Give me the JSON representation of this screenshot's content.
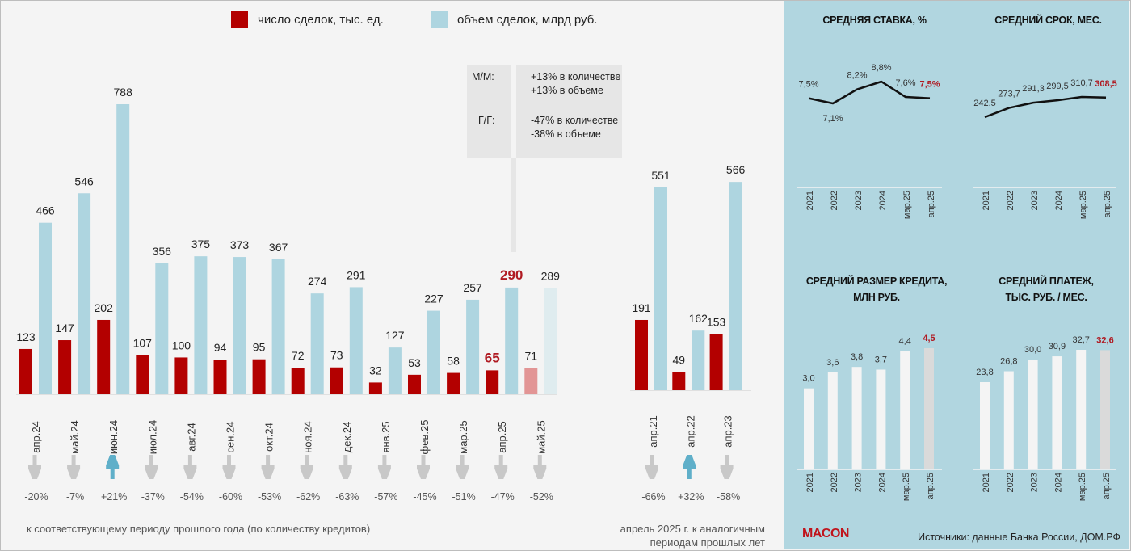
{
  "legend": {
    "count_label": "число сделок, тыс. ед.",
    "count_color": "#b30000",
    "volume_label": "объем сделок, млрд руб.",
    "volume_color": "#aed5e0"
  },
  "callout": {
    "mm_key": "М/М:",
    "mm_lines": [
      "+13% в количестве",
      "+13% в объеме"
    ],
    "yy_key": "Г/Г:",
    "yy_lines": [
      "-47% в количестве",
      "-38% в объеме"
    ]
  },
  "footnotes": {
    "left": "к соответствующему периоду прошлого года (по количеству кредитов)",
    "right_line1": "апрель 2025 г. к аналогичным",
    "right_line2": "периодам прошлых лет"
  },
  "brand": "MACON",
  "sources": "Источники: данные Банка России, ДОМ.РФ",
  "colors": {
    "count": "#b30000",
    "count_forecast": "#e29595",
    "volume": "#aed5e0",
    "volume_forecast": "#dfecef",
    "highlight_text": "#b01a22",
    "arrow_down": "#c8c8c8",
    "arrow_up": "#5fafc9",
    "panel_bar": "#f4f4f4",
    "panel_bar_current": "#dadada"
  },
  "chart_data": [
    {
      "type": "bar",
      "title": "Monthly mortgage deals",
      "categories": [
        "апр.24",
        "май.24",
        "июн.24",
        "июл.24",
        "авг.24",
        "сен.24",
        "окт.24",
        "ноя.24",
        "дек.24",
        "янв.25",
        "фев.25",
        "мар.25",
        "апр.25",
        "май.25"
      ],
      "series": [
        {
          "name": "число сделок, тыс. ед.",
          "values": [
            123,
            147,
            202,
            107,
            100,
            94,
            95,
            72,
            73,
            32,
            53,
            58,
            65,
            71
          ]
        },
        {
          "name": "объем сделок, млрд руб.",
          "values": [
            466,
            546,
            788,
            356,
            375,
            373,
            367,
            274,
            291,
            127,
            227,
            257,
            290,
            289
          ]
        }
      ],
      "highlight_index": 12,
      "forecast_index": 13,
      "yoy_change": [
        "-20%",
        "-7%",
        "+21%",
        "-37%",
        "-54%",
        "-60%",
        "-53%",
        "-62%",
        "-63%",
        "-57%",
        "-45%",
        "-51%",
        "-47%",
        "-52%"
      ],
      "yoy_direction": [
        "down",
        "down",
        "up",
        "down",
        "down",
        "down",
        "down",
        "down",
        "down",
        "down",
        "down",
        "down",
        "down",
        "down"
      ],
      "ylim": [
        0,
        800
      ],
      "grid": false,
      "legend": "top"
    },
    {
      "type": "bar",
      "title": "April of previous years",
      "categories": [
        "апр.21",
        "апр.22",
        "апр.23"
      ],
      "series": [
        {
          "name": "число сделок, тыс. ед.",
          "values": [
            191,
            49,
            153
          ]
        },
        {
          "name": "объем сделок, млрд руб.",
          "values": [
            551,
            162,
            566
          ]
        }
      ],
      "change_vs_apr25": [
        "-66%",
        "+32%",
        "-58%"
      ],
      "change_direction": [
        "down",
        "up",
        "down"
      ],
      "ylim": [
        0,
        800
      ]
    },
    {
      "type": "line",
      "title": "СРЕДНЯЯ СТАВКА, %",
      "categories": [
        "2021",
        "2022",
        "2023",
        "2024",
        "мар.25",
        "апр.25"
      ],
      "values": [
        7.5,
        7.1,
        8.2,
        8.8,
        7.6,
        7.5
      ],
      "labels": [
        "7,5%",
        "7,1%",
        "8,2%",
        "8,8%",
        "7,6%",
        "7,5%"
      ],
      "highlight_index": 5
    },
    {
      "type": "line",
      "title": "СРЕДНИЙ СРОК, МЕС.",
      "categories": [
        "2021",
        "2022",
        "2023",
        "2024",
        "мар.25",
        "апр.25"
      ],
      "values": [
        242.5,
        273.7,
        291.3,
        299.5,
        310.7,
        308.5
      ],
      "labels": [
        "242,5",
        "273,7",
        "291,3",
        "299,5",
        "310,7",
        "308,5"
      ],
      "highlight_index": 5
    },
    {
      "type": "bar",
      "title": "СРЕДНИЙ РАЗМЕР КРЕДИТА, МЛН  РУБ.",
      "title_lines": [
        "СРЕДНИЙ РАЗМЕР КРЕДИТА,",
        "МЛН  РУБ."
      ],
      "categories": [
        "2021",
        "2022",
        "2023",
        "2024",
        "мар.25",
        "апр.25"
      ],
      "values": [
        3.0,
        3.6,
        3.8,
        3.7,
        4.4,
        4.5
      ],
      "labels": [
        "3,0",
        "3,6",
        "3,8",
        "3,7",
        "4,4",
        "4,5"
      ],
      "highlight_index": 5,
      "ylim": [
        0,
        4.6
      ]
    },
    {
      "type": "bar",
      "title": "СРЕДНИЙ ПЛАТЕЖ, ТЫС. РУБ. / МЕС.",
      "title_lines": [
        "СРЕДНИЙ ПЛАТЕЖ,",
        "ТЫС. РУБ. / МЕС."
      ],
      "categories": [
        "2021",
        "2022",
        "2023",
        "2024",
        "мар.25",
        "апр.25"
      ],
      "values": [
        23.8,
        26.8,
        30.0,
        30.9,
        32.7,
        32.6
      ],
      "labels": [
        "23,8",
        "26,8",
        "30,0",
        "30,9",
        "32,7",
        "32,6"
      ],
      "highlight_index": 5,
      "ylim": [
        0,
        34.5
      ]
    }
  ]
}
